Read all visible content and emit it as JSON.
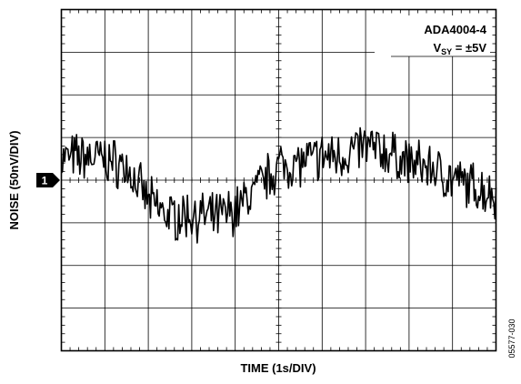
{
  "chart_data": {
    "type": "line",
    "annotation": {
      "part_number": "ADA4004-4",
      "supply_prefix": "V",
      "supply_subscript": "SY",
      "supply_value": " = ±5V"
    },
    "xlabel": "TIME (1s/DIV)",
    "ylabel": "NOISE (50nV/DIV)",
    "channel_marker": "1",
    "figure_id": "05577-030",
    "x_divisions": 10,
    "y_divisions": 8,
    "xlim": [
      0,
      10
    ],
    "ylim": [
      -4,
      4
    ],
    "grid": true,
    "series": [
      {
        "x": [
          0,
          0.5,
          1,
          1.5,
          1.75,
          2,
          2.5,
          3,
          3.5,
          4,
          4.5,
          5,
          5.5,
          6,
          6.5,
          7,
          7.5,
          8,
          8.5,
          9,
          9.5,
          10
        ],
        "values": [
          0.5,
          0.55,
          0.5,
          0.3,
          -0.1,
          -0.5,
          -0.85,
          -0.8,
          -0.9,
          -0.7,
          -0.2,
          0.35,
          0.4,
          0.55,
          0.6,
          0.8,
          0.65,
          0.4,
          0.3,
          0.0,
          -0.15,
          -0.35
        ]
      }
    ]
  }
}
